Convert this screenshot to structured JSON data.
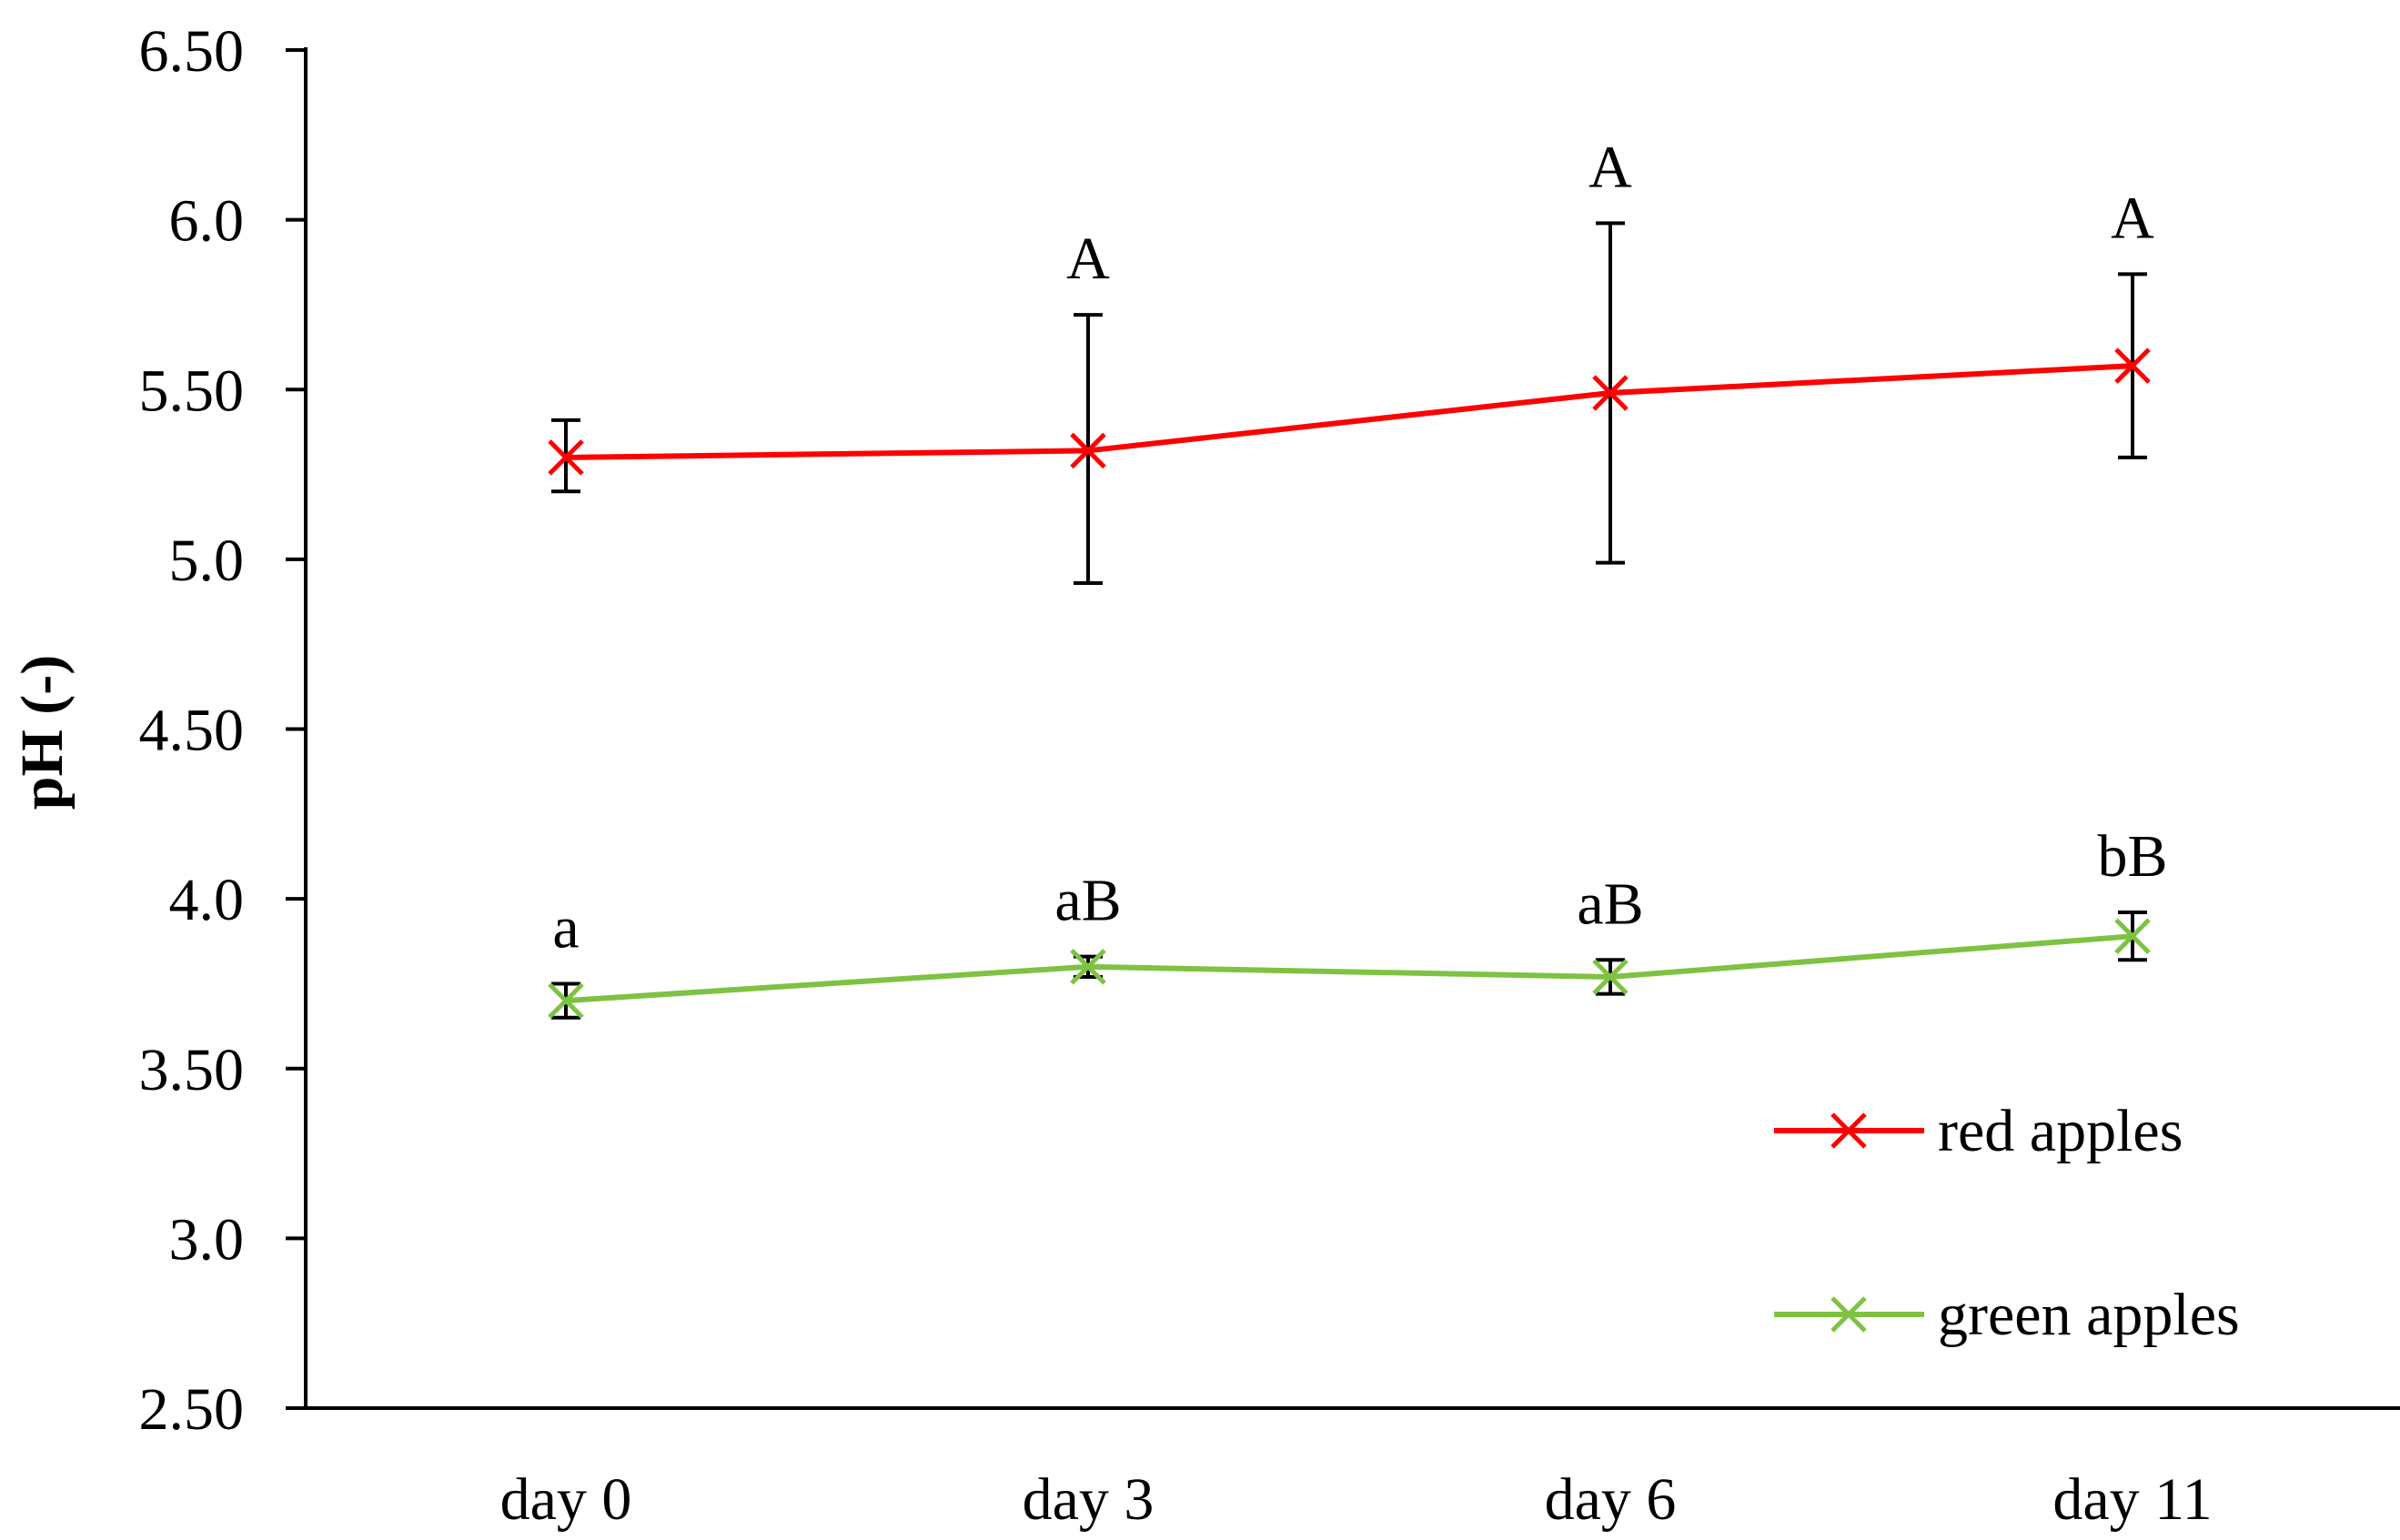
{
  "chart_data": {
    "type": "line",
    "title": "",
    "xlabel": "",
    "ylabel": "pH (-)",
    "categories": [
      "day 0",
      "day 3",
      "day 6",
      "day 11"
    ],
    "ylim": [
      2.5,
      6.5
    ],
    "yticks": [
      2.5,
      3.0,
      3.5,
      4.0,
      4.5,
      5.0,
      5.5,
      6.0,
      6.5
    ],
    "ytick_labels": [
      "2.50",
      "3.0",
      "3.50",
      "4.0",
      "4.50",
      "5.0",
      "5.50",
      "6.0",
      "6.50"
    ],
    "grid": false,
    "legend_position": "bottom-right",
    "series": [
      {
        "name": "red apples",
        "color": "#ff0000",
        "marker": "x",
        "values": [
          5.3,
          5.32,
          5.49,
          5.57
        ],
        "error": [
          [
            5.2,
            5.41
          ],
          [
            4.93,
            5.72
          ],
          [
            4.99,
            5.99
          ],
          [
            5.3,
            5.84
          ]
        ],
        "annotations": [
          "",
          "A",
          "A",
          "A"
        ]
      },
      {
        "name": "green apples",
        "color": "#7ec242",
        "marker": "x",
        "values": [
          3.7,
          3.8,
          3.77,
          3.89
        ],
        "error": [
          [
            3.65,
            3.75
          ],
          [
            3.77,
            3.83
          ],
          [
            3.72,
            3.82
          ],
          [
            3.82,
            3.96
          ]
        ],
        "annotations": [
          "a",
          "aB",
          "aB",
          "bB"
        ]
      }
    ]
  }
}
